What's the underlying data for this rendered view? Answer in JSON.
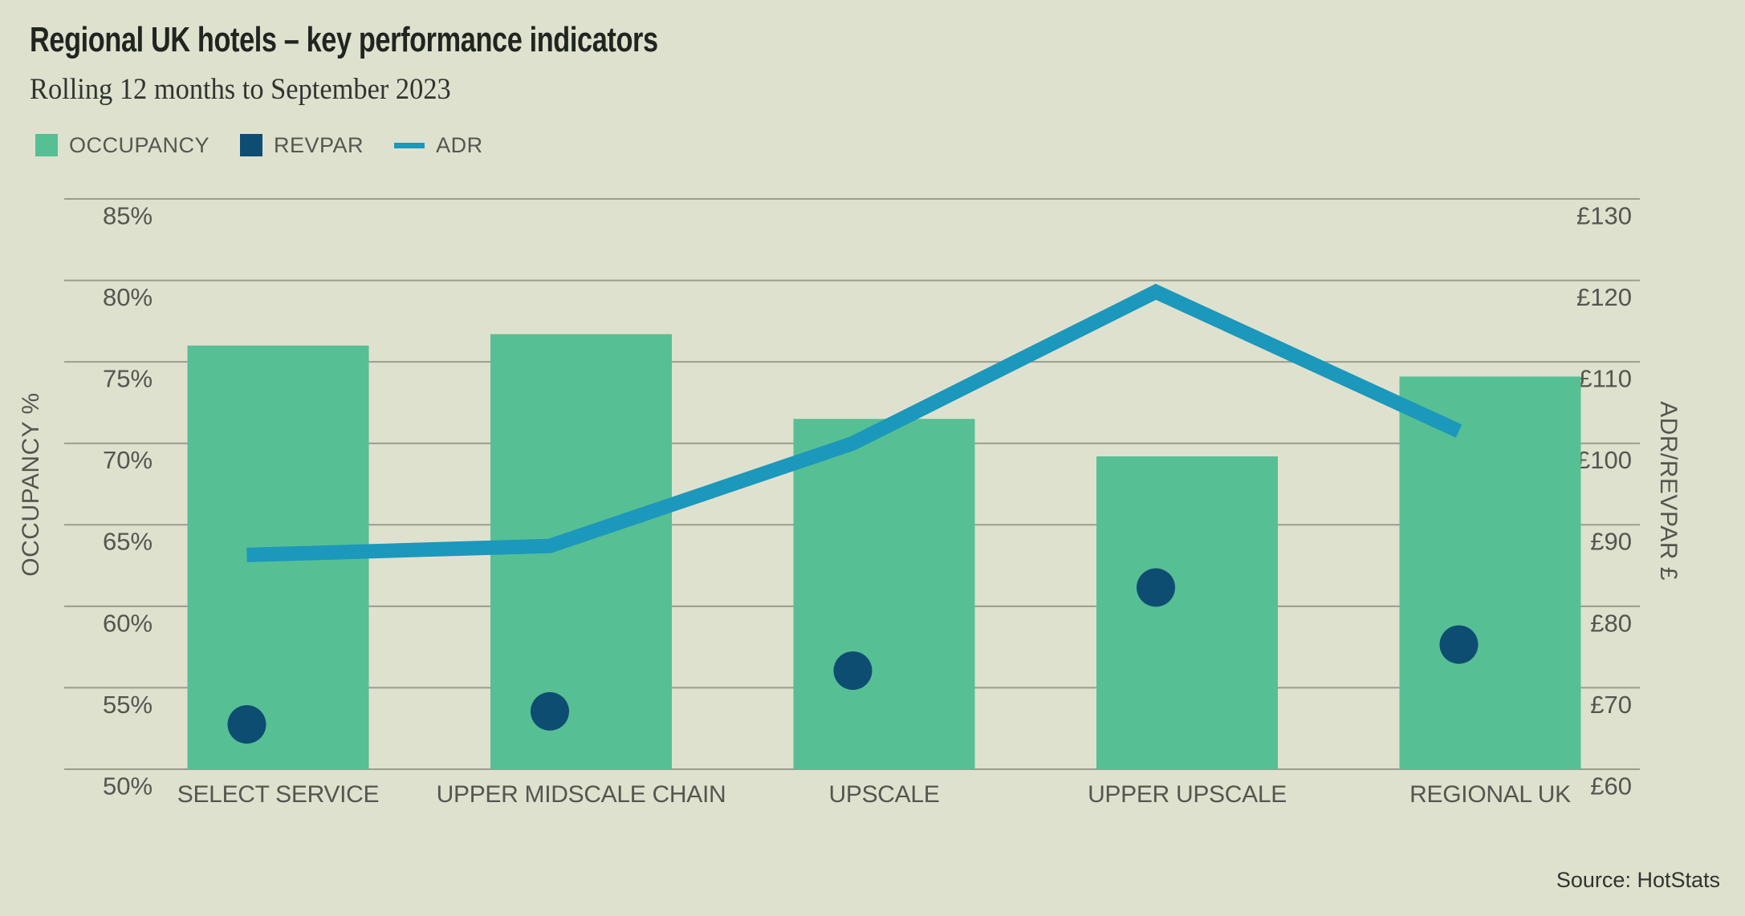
{
  "header": {
    "title": "Regional UK hotels – key performance indicators",
    "subtitle": "Rolling 12 months to September 2023"
  },
  "legend": {
    "items": [
      {
        "label": "OCCUPANCY",
        "swatch": "square",
        "color": "#57bf94"
      },
      {
        "label": "REVPAR",
        "swatch": "square",
        "color": "#0d4d72"
      },
      {
        "label": "ADR",
        "swatch": "line",
        "color": "#1b98bb"
      }
    ]
  },
  "source": {
    "label": "Source: HotStats"
  },
  "colors": {
    "background": "#dfe1cf",
    "gridline": "#9b9c8d",
    "tick_text": "#53574e",
    "bar": "#57bf94",
    "dot": "#0d4d72",
    "line": "#1b98bb"
  },
  "chart_data": {
    "type": "combo",
    "categories": [
      "SELECT SERVICE",
      "UPPER MIDSCALE CHAIN",
      "UPSCALE",
      "UPPER UPSCALE",
      "REGIONAL UK"
    ],
    "series": [
      {
        "name": "OCCUPANCY",
        "type": "bar",
        "axis": "left",
        "unit": "%",
        "color": "#57bf94",
        "values": [
          76.0,
          76.7,
          71.5,
          69.2,
          74.1
        ]
      },
      {
        "name": "REVPAR",
        "type": "scatter",
        "axis": "right",
        "unit": "£",
        "color": "#0d4d72",
        "values": [
          65.5,
          67.1,
          72.1,
          82.3,
          75.3
        ]
      },
      {
        "name": "ADR",
        "type": "line",
        "axis": "right",
        "unit": "£",
        "color": "#1b98bb",
        "values": [
          86.3,
          87.4,
          100.0,
          118.6,
          101.5
        ]
      }
    ],
    "left_axis": {
      "title": "OCCUPANCY %",
      "min": 50,
      "max": 85,
      "ticks": [
        "85%",
        "80%",
        "75%",
        "70%",
        "65%",
        "60%",
        "55%",
        "50%"
      ]
    },
    "right_axis": {
      "title": "ADR/REVPAR £",
      "min": 60,
      "max": 130,
      "ticks": [
        "£130",
        "£120",
        "£110",
        "£100",
        "£90",
        "£80",
        "£70",
        "£60"
      ]
    },
    "grid": true,
    "legend_position": "top-left"
  }
}
